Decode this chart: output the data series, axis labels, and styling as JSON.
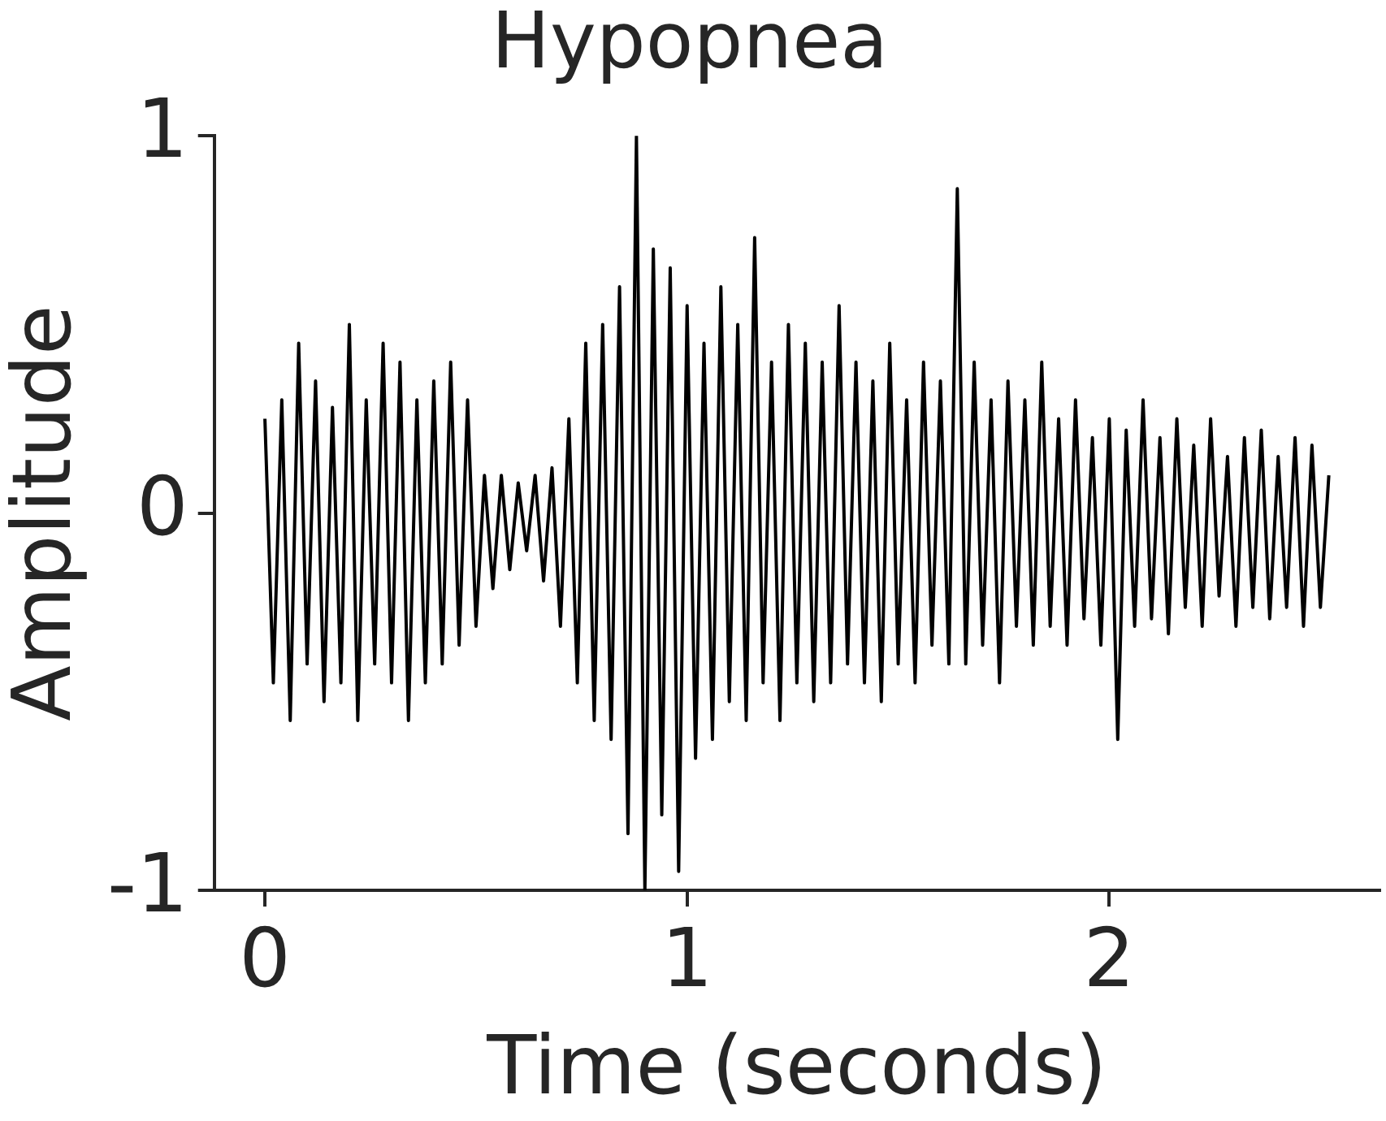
{
  "chart_data": {
    "type": "line",
    "title": "Hypopnea",
    "xlabel": "Time (seconds)",
    "ylabel": "Amplitude",
    "xlim": [
      -0.12,
      2.64
    ],
    "ylim": [
      -1,
      1
    ],
    "xticks": [
      0,
      1,
      2
    ],
    "yticks": [
      -1,
      0,
      1
    ],
    "grid": false,
    "legend": false,
    "marker": "none",
    "line_style": "solid",
    "series": [
      {
        "color": "#000000",
        "x": [
          0,
          0.02,
          0.04,
          0.06,
          0.08,
          0.1,
          0.12,
          0.14,
          0.16,
          0.18,
          0.2,
          0.22,
          0.24,
          0.26,
          0.28,
          0.3,
          0.32,
          0.34,
          0.36,
          0.38,
          0.4,
          0.42,
          0.44,
          0.46,
          0.48,
          0.5,
          0.52,
          0.54,
          0.56,
          0.58,
          0.6,
          0.62,
          0.64,
          0.66,
          0.68,
          0.7,
          0.72,
          0.74,
          0.76,
          0.78,
          0.8,
          0.82,
          0.84,
          0.86,
          0.88,
          0.9,
          0.92,
          0.94,
          0.96,
          0.98,
          1,
          1.02,
          1.04,
          1.06,
          1.08,
          1.1,
          1.12,
          1.14,
          1.16,
          1.18,
          1.2,
          1.22,
          1.24,
          1.26,
          1.28,
          1.3,
          1.32,
          1.34,
          1.36,
          1.38,
          1.4,
          1.42,
          1.44,
          1.46,
          1.48,
          1.5,
          1.52,
          1.54,
          1.56,
          1.58,
          1.6,
          1.62,
          1.64,
          1.66,
          1.68,
          1.7,
          1.72,
          1.74,
          1.76,
          1.78,
          1.8,
          1.82,
          1.84,
          1.86,
          1.88,
          1.9,
          1.92,
          1.94,
          1.96,
          1.98,
          2,
          2.02,
          2.04,
          2.06,
          2.08,
          2.1,
          2.12,
          2.14,
          2.16,
          2.18,
          2.2,
          2.22,
          2.24,
          2.26,
          2.28,
          2.3,
          2.32,
          2.34,
          2.36,
          2.38,
          2.4,
          2.42,
          2.44,
          2.46,
          2.48,
          2.5,
          2.52
        ],
        "values": [
          0.25,
          -0.45,
          0.3,
          -0.55,
          0.45,
          -0.4,
          0.35,
          -0.5,
          0.28,
          -0.45,
          0.5,
          -0.55,
          0.3,
          -0.4,
          0.45,
          -0.45,
          0.4,
          -0.55,
          0.3,
          -0.45,
          0.35,
          -0.4,
          0.4,
          -0.35,
          0.3,
          -0.3,
          0.1,
          -0.2,
          0.1,
          -0.15,
          0.08,
          -0.1,
          0.1,
          -0.18,
          0.12,
          -0.3,
          0.25,
          -0.45,
          0.45,
          -0.55,
          0.5,
          -0.6,
          0.6,
          -0.85,
          1.0,
          -1.0,
          0.7,
          -0.8,
          0.65,
          -0.95,
          0.55,
          -0.65,
          0.45,
          -0.6,
          0.6,
          -0.5,
          0.5,
          -0.55,
          0.73,
          -0.45,
          0.4,
          -0.55,
          0.5,
          -0.45,
          0.45,
          -0.5,
          0.4,
          -0.45,
          0.55,
          -0.4,
          0.4,
          -0.45,
          0.35,
          -0.5,
          0.45,
          -0.4,
          0.3,
          -0.45,
          0.4,
          -0.35,
          0.35,
          -0.4,
          0.86,
          -0.4,
          0.4,
          -0.35,
          0.3,
          -0.45,
          0.35,
          -0.3,
          0.3,
          -0.35,
          0.4,
          -0.3,
          0.25,
          -0.35,
          0.3,
          -0.28,
          0.2,
          -0.35,
          0.25,
          -0.6,
          0.22,
          -0.3,
          0.3,
          -0.28,
          0.2,
          -0.32,
          0.25,
          -0.25,
          0.18,
          -0.3,
          0.25,
          -0.22,
          0.15,
          -0.3,
          0.2,
          -0.25,
          0.22,
          -0.28,
          0.15,
          -0.25,
          0.2,
          -0.3,
          0.18,
          -0.25,
          0.1
        ]
      }
    ]
  }
}
